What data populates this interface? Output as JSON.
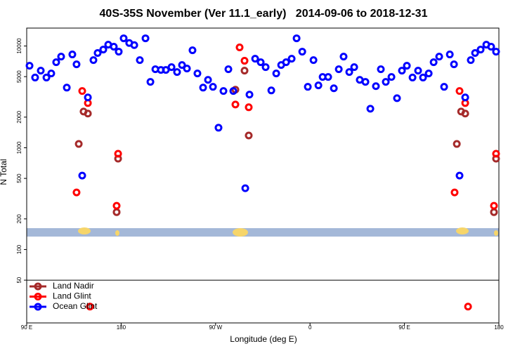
{
  "chart_data": {
    "type": "scatter",
    "title": "40S-35S November (Ver 11.1_early)   2014-09-06 to 2018-12-31",
    "x_label": "Longitude (deg E)",
    "y_label": "N Total",
    "xlim": [
      90,
      540
    ],
    "xticks": [
      {
        "value": 90,
        "label": "90 E"
      },
      180,
      {
        "value": 270,
        "label": "90 W"
      },
      {
        "value": 360,
        "label": "0"
      },
      {
        "value": 450,
        "label": "90 E"
      },
      {
        "value": 540,
        "label": "180"
      }
    ],
    "ylim": [
      19,
      15000
    ],
    "y_scale": "log",
    "yticks": [
      50,
      100,
      200,
      500,
      1000,
      2000,
      5000,
      10000
    ],
    "legend_position": "lower left",
    "series": [
      {
        "name": "Land Nadir",
        "color": "#a52a2a",
        "x": [
          139.6,
          144.2,
          148.3,
          175.7,
          177.1,
          288.9,
          297.6,
          301.6,
          499.9,
          504.0,
          507.9,
          535.3,
          537.3
        ],
        "values": [
          1090,
          2270,
          2170,
          233,
          781,
          3720,
          5730,
          1320,
          1090,
          2270,
          2170,
          233,
          781
        ]
      },
      {
        "name": "Land Glint",
        "color": "#ff0000",
        "x": [
          137.5,
          142.9,
          148.3,
          175.7,
          177.1,
          292.9,
          297.6,
          301.6,
          288.9,
          150.3,
          497.8,
          502.5,
          507.9,
          535.3,
          537.3,
          510.6
        ],
        "values": [
          364,
          3610,
          2750,
          269,
          874,
          9690,
          7160,
          2500,
          2660,
          27.5,
          364,
          3610,
          2750,
          269,
          874,
          27.5
        ]
      },
      {
        "name": "Ocean Glint",
        "color": "#0000ff",
        "x": [
          92.7,
          98.0,
          103.4,
          108.8,
          113.4,
          118.1,
          122.8,
          128.2,
          133.5,
          137.5,
          142.9,
          148.3,
          153.6,
          157.6,
          163.0,
          167.7,
          173.0,
          177.7,
          182.4,
          187.7,
          192.5,
          197.8,
          203.2,
          207.9,
          212.6,
          217.9,
          222.6,
          228.0,
          233.3,
          238.0,
          242.7,
          248.0,
          252.7,
          258.1,
          262.8,
          267.5,
          272.8,
          277.5,
          282.2,
          286.9,
          298.3,
          302.3,
          307.7,
          313.0,
          317.7,
          323.1,
          327.8,
          332.5,
          337.2,
          342.5,
          347.2,
          352.6,
          357.9,
          363.3,
          368.0,
          372.0,
          377.3,
          382.7,
          387.4,
          392.0,
          397.4,
          402.1,
          407.4,
          412.8,
          417.5,
          422.8,
          427.5,
          432.2,
          437.6,
          442.9,
          447.6,
          452.3,
          457.7,
          463.0,
          467.7,
          473.1,
          477.8,
          483.1,
          487.8,
          493.2,
          497.2,
          502.5,
          507.9,
          513.2,
          517.3,
          522.6,
          528.0,
          532.6,
          537.3
        ],
        "values": [
          6400,
          4900,
          5730,
          4900,
          5370,
          6930,
          7870,
          3900,
          8260,
          6610,
          533,
          3125,
          7270,
          8530,
          9230,
          10300,
          9840,
          8800,
          11900,
          10700,
          10200,
          7270,
          11900,
          4440,
          5910,
          5820,
          5820,
          6200,
          5550,
          6500,
          6010,
          9080,
          5370,
          3900,
          4650,
          3970,
          1574,
          3610,
          5910,
          3610,
          400,
          3330,
          7500,
          6930,
          6200,
          3660,
          5370,
          6500,
          6930,
          7500,
          11900,
          8800,
          3970,
          7270,
          4100,
          4960,
          4960,
          3840,
          5910,
          7870,
          5550,
          6200,
          4650,
          4440,
          2420,
          4030,
          5910,
          4440,
          4960,
          3070,
          5730,
          6400,
          4900,
          5730,
          4900,
          5370,
          6930,
          7870,
          3970,
          8260,
          6610,
          533,
          3125,
          7270,
          8530,
          9230,
          10300,
          9840,
          8800
        ]
      }
    ]
  }
}
